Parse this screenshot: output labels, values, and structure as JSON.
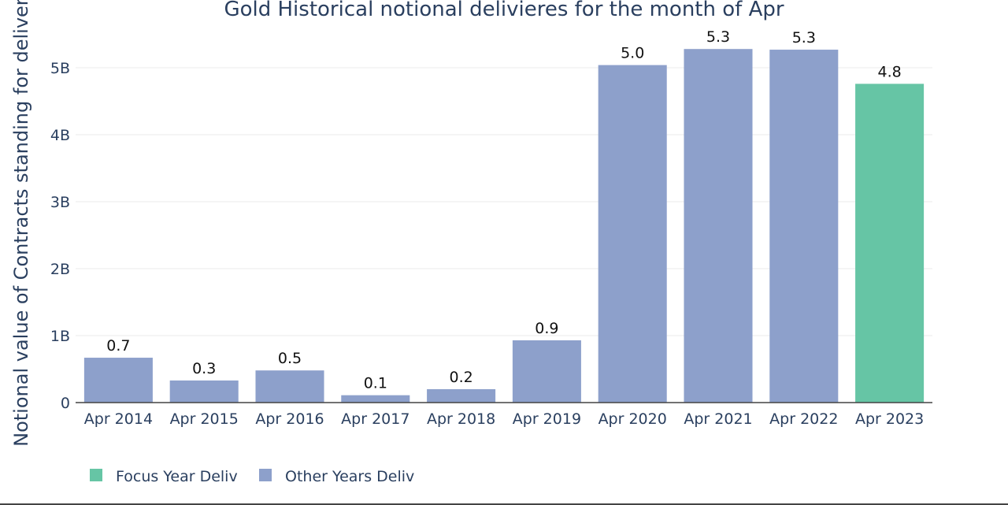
{
  "chart_data": {
    "type": "bar",
    "title": "Gold Historical notional delivieres for the month of Apr",
    "xlabel": "",
    "ylabel": "Notional value of Contracts standing for delivery",
    "categories": [
      "Apr 2014",
      "Apr 2015",
      "Apr 2016",
      "Apr 2017",
      "Apr 2018",
      "Apr 2019",
      "Apr 2020",
      "Apr 2021",
      "Apr 2022",
      "Apr 2023"
    ],
    "values": [
      0.67,
      0.33,
      0.48,
      0.11,
      0.2,
      0.93,
      5.04,
      5.28,
      5.27,
      4.76
    ],
    "data_labels": [
      "0.7",
      "0.3",
      "0.5",
      "0.1",
      "0.2",
      "0.9",
      "5.0",
      "5.3",
      "5.3",
      "4.8"
    ],
    "series_membership": [
      "Other Years Deliv",
      "Other Years Deliv",
      "Other Years Deliv",
      "Other Years Deliv",
      "Other Years Deliv",
      "Other Years Deliv",
      "Other Years Deliv",
      "Other Years Deliv",
      "Other Years Deliv",
      "Focus Year Deliv"
    ],
    "ylim": [
      0,
      5.6
    ],
    "yticks": [
      0,
      1,
      2,
      3,
      4,
      5
    ],
    "yticklabels": [
      "0",
      "1B",
      "2B",
      "3B",
      "4B",
      "5B"
    ],
    "grid": true,
    "legend": {
      "placement": "bottom-left",
      "entries": [
        {
          "name": "Focus Year Deliv",
          "color": "#66c5a5"
        },
        {
          "name": "Other Years Deliv",
          "color": "#8da0cb"
        }
      ]
    },
    "colors": {
      "focus": "#66c5a5",
      "other": "#8da0cb",
      "grid": "#ebebeb",
      "axis": "#444444"
    }
  }
}
